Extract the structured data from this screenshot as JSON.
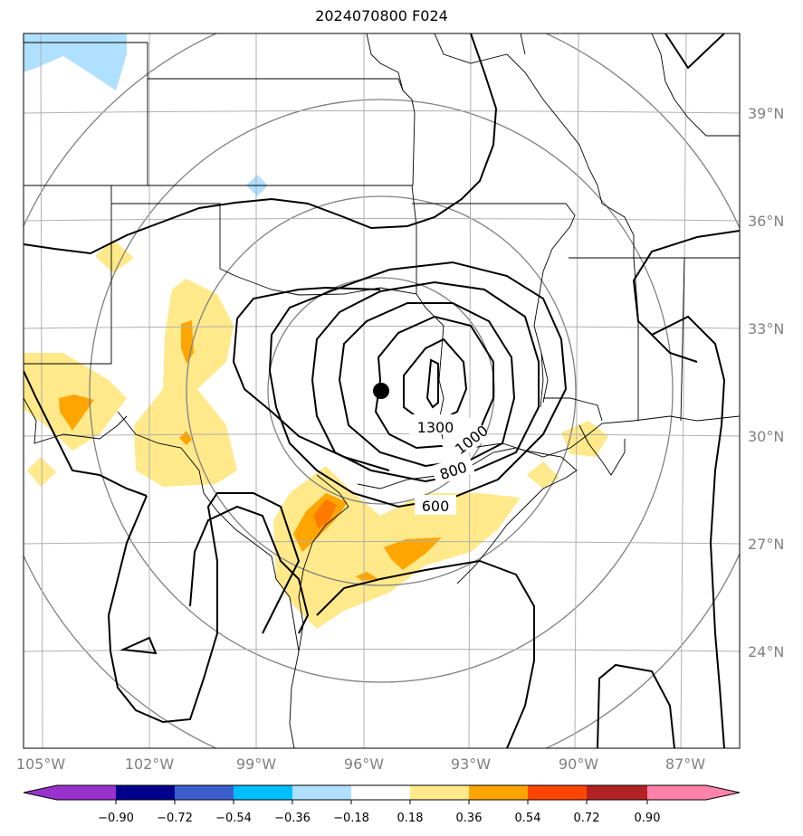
{
  "title": "2024070800 F024",
  "map": {
    "lon_ticks": [
      "105°W",
      "102°W",
      "99°W",
      "96°W",
      "93°W",
      "90°W",
      "87°W"
    ],
    "lat_ticks": [
      "39°N",
      "36°N",
      "33°N",
      "30°N",
      "27°N",
      "24°N"
    ],
    "contour_labels": [
      "1300",
      "1000",
      "800",
      "600"
    ],
    "center_marker": {
      "lon": -95.6,
      "lat": 31.2
    }
  },
  "colorbar": {
    "ticks": [
      "−0.90",
      "−0.72",
      "−0.54",
      "−0.36",
      "−0.18",
      "0.18",
      "0.36",
      "0.54",
      "0.72",
      "0.90"
    ],
    "colors": [
      "#9932cc",
      "#00008b",
      "#3a5fcd",
      "#00bfff",
      "#b0e0ff",
      "#ffffff",
      "#ffe98a",
      "#ffa500",
      "#ff4500",
      "#b22222",
      "#ff82ab"
    ]
  }
}
